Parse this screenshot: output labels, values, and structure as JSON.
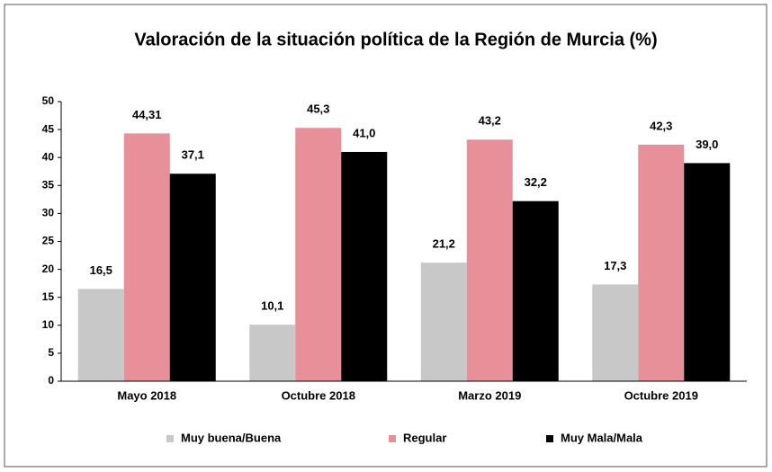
{
  "chart_data": {
    "type": "bar",
    "title": "Valoración de la situación política de la Región de Murcia (%)",
    "categories": [
      "Mayo 2018",
      "Octubre 2018",
      "Marzo 2019",
      "Octubre 2019"
    ],
    "series": [
      {
        "name": "Muy buena/Buena",
        "color": "#c8c8c8",
        "values": [
          16.5,
          10.1,
          21.2,
          17.3
        ],
        "value_labels": [
          "16,5",
          "10,1",
          "21,2",
          "17,3"
        ]
      },
      {
        "name": "Regular",
        "color": "#e8909a",
        "values": [
          44.31,
          45.3,
          43.2,
          42.3
        ],
        "value_labels": [
          "44,31",
          "45,3",
          "43,2",
          "42,3"
        ]
      },
      {
        "name": "Muy Mala/Mala",
        "color": "#000000",
        "values": [
          37.1,
          41.0,
          32.2,
          39.0
        ],
        "value_labels": [
          "37,1",
          "41,0",
          "32,2",
          "39,0"
        ]
      }
    ],
    "ylim": [
      0,
      50
    ],
    "yticks": [
      0,
      5,
      10,
      15,
      20,
      25,
      30,
      35,
      40,
      45,
      50
    ],
    "grid": false,
    "legend": "bottom"
  }
}
